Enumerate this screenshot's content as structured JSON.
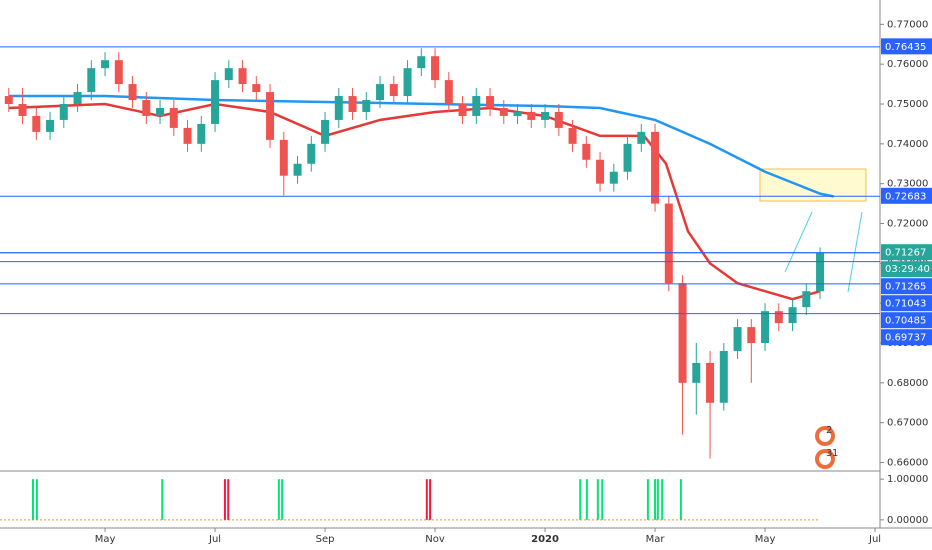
{
  "chart_data": [
    {
      "type": "candlestick",
      "x": [
        2.25,
        2.5,
        2.75,
        3,
        3.25,
        3.5,
        3.75,
        4,
        4.25,
        4.5,
        4.75,
        5,
        5.25,
        5.5,
        5.75,
        6,
        6.25,
        6.5,
        6.75,
        7,
        7.25,
        7.5,
        7.75,
        8,
        8.25,
        8.5,
        8.75,
        9,
        9.25,
        9.5,
        9.75,
        10,
        10.25,
        10.5,
        10.75,
        11,
        11.25,
        11.5,
        11.75,
        12,
        12.25,
        12.5,
        12.75,
        13,
        13.25,
        13.5,
        13.75,
        14,
        14.25,
        14.5,
        14.75,
        15,
        15.25,
        15.5,
        15.75,
        16,
        16.25,
        16.5,
        16.75,
        17
      ],
      "open": [
        0.752,
        0.75,
        0.747,
        0.743,
        0.746,
        0.75,
        0.753,
        0.759,
        0.761,
        0.755,
        0.751,
        0.747,
        0.749,
        0.744,
        0.74,
        0.745,
        0.756,
        0.759,
        0.755,
        0.753,
        0.741,
        0.732,
        0.735,
        0.74,
        0.746,
        0.752,
        0.748,
        0.751,
        0.755,
        0.752,
        0.759,
        0.762,
        0.756,
        0.75,
        0.747,
        0.752,
        0.749,
        0.747,
        0.748,
        0.746,
        0.748,
        0.744,
        0.74,
        0.736,
        0.73,
        0.733,
        0.74,
        0.743,
        0.725,
        0.705,
        0.68,
        0.685,
        0.675,
        0.688,
        0.694,
        0.69,
        0.698,
        0.695,
        0.699,
        0.703
      ],
      "high": [
        0.754,
        0.754,
        0.749,
        0.748,
        0.752,
        0.755,
        0.761,
        0.763,
        0.763,
        0.757,
        0.753,
        0.751,
        0.751,
        0.746,
        0.747,
        0.758,
        0.761,
        0.761,
        0.757,
        0.755,
        0.743,
        0.737,
        0.742,
        0.748,
        0.754,
        0.754,
        0.753,
        0.757,
        0.757,
        0.761,
        0.764,
        0.764,
        0.758,
        0.752,
        0.754,
        0.754,
        0.751,
        0.75,
        0.75,
        0.75,
        0.75,
        0.746,
        0.742,
        0.738,
        0.735,
        0.742,
        0.745,
        0.745,
        0.727,
        0.707,
        0.69,
        0.688,
        0.69,
        0.696,
        0.696,
        0.7,
        0.7,
        0.701,
        0.705,
        0.714
      ],
      "low": [
        0.748,
        0.745,
        0.741,
        0.741,
        0.744,
        0.748,
        0.751,
        0.757,
        0.753,
        0.749,
        0.745,
        0.745,
        0.742,
        0.738,
        0.738,
        0.743,
        0.754,
        0.753,
        0.751,
        0.739,
        0.727,
        0.73,
        0.733,
        0.738,
        0.744,
        0.746,
        0.746,
        0.749,
        0.75,
        0.75,
        0.757,
        0.754,
        0.748,
        0.745,
        0.745,
        0.747,
        0.745,
        0.745,
        0.744,
        0.744,
        0.742,
        0.738,
        0.734,
        0.728,
        0.728,
        0.731,
        0.738,
        0.723,
        0.703,
        0.667,
        0.672,
        0.661,
        0.673,
        0.686,
        0.68,
        0.688,
        0.693,
        0.693,
        0.697,
        0.701
      ],
      "close": [
        0.75,
        0.747,
        0.743,
        0.746,
        0.75,
        0.753,
        0.759,
        0.761,
        0.755,
        0.751,
        0.747,
        0.749,
        0.744,
        0.74,
        0.745,
        0.756,
        0.759,
        0.755,
        0.753,
        0.741,
        0.732,
        0.735,
        0.74,
        0.746,
        0.752,
        0.748,
        0.751,
        0.755,
        0.752,
        0.759,
        0.762,
        0.756,
        0.75,
        0.747,
        0.752,
        0.749,
        0.747,
        0.748,
        0.746,
        0.748,
        0.744,
        0.74,
        0.736,
        0.73,
        0.733,
        0.74,
        0.743,
        0.725,
        0.705,
        0.68,
        0.685,
        0.675,
        0.688,
        0.694,
        0.69,
        0.698,
        0.695,
        0.699,
        0.703,
        0.7127
      ],
      "up_color": "#26a69a",
      "down_color": "#ef5350",
      "lines": [
        {
          "color": "#2196f3",
          "x": [
            2.25,
            4,
            6,
            8,
            10,
            12,
            13,
            14,
            15,
            16,
            17,
            17.25
          ],
          "values": [
            0.752,
            0.752,
            0.751,
            0.7505,
            0.75,
            0.7495,
            0.749,
            0.746,
            0.74,
            0.733,
            0.7275,
            0.7268
          ]
        },
        {
          "color": "#e53935",
          "x": [
            2.25,
            4,
            5,
            6,
            7,
            8,
            9,
            10,
            11,
            12,
            13,
            13.8,
            14.2,
            14.6,
            15,
            15.5,
            16,
            16.5,
            17
          ],
          "values": [
            0.749,
            0.75,
            0.747,
            0.75,
            0.748,
            0.742,
            0.746,
            0.748,
            0.749,
            0.747,
            0.742,
            0.742,
            0.735,
            0.718,
            0.71,
            0.705,
            0.703,
            0.701,
            0.703
          ]
        }
      ],
      "xlim": [
        2.09,
        18.09
      ],
      "xticks": [
        {
          "value": 4,
          "label": "May"
        },
        {
          "value": 6,
          "label": "Jul"
        },
        {
          "value": 8,
          "label": "Sep"
        },
        {
          "value": 10,
          "label": "Nov"
        },
        {
          "value": 12,
          "label": "2020"
        },
        {
          "value": 14,
          "label": "Mar"
        },
        {
          "value": 16,
          "label": "May"
        },
        {
          "value": 18,
          "label": "Jul"
        }
      ],
      "ylim": [
        0.65812,
        0.77611
      ],
      "yticks": [
        {
          "value": 0.77,
          "label": "0.77000"
        },
        {
          "value": 0.76,
          "label": "0.76000"
        },
        {
          "value": 0.75,
          "label": "0.75000"
        },
        {
          "value": 0.74,
          "label": "0.74000"
        },
        {
          "value": 0.73,
          "label": "0.73000"
        },
        {
          "value": 0.72,
          "label": "0.72000"
        },
        {
          "value": 0.71,
          "label": "0.71000"
        },
        {
          "value": 0.7,
          "label": "0.70000"
        },
        {
          "value": 0.69,
          "label": "0.69000"
        },
        {
          "value": 0.68,
          "label": "0.68000"
        },
        {
          "value": 0.67,
          "label": "0.67000"
        },
        {
          "value": 0.66,
          "label": "0.66000"
        }
      ],
      "levels": [
        0.76435,
        0.72683,
        0.71265,
        0.71043,
        0.70485,
        0.69737
      ],
      "level_color": "#2962ff",
      "current_price": 0.71267,
      "current_color": "#26a69a",
      "countdown": "03:29:40",
      "markers": [
        "2",
        "3",
        "1"
      ]
    },
    {
      "type": "bar",
      "series": [
        {
          "color": "#00e676",
          "x": [
            2.69,
            2.76,
            5.04,
            7.16,
            7.22,
            12.64,
            12.76,
            12.96,
            13.04,
            13.87,
            14.0,
            14.05,
            14.13,
            14.47
          ],
          "values": [
            1,
            1,
            1,
            1,
            1,
            1,
            1,
            1,
            1,
            1,
            1,
            1,
            1,
            1
          ]
        },
        {
          "color": "#ff1744",
          "x": [
            6.18,
            6.24,
            9.85,
            9.91
          ],
          "values": [
            1,
            1,
            1,
            1
          ]
        }
      ],
      "xlim": [
        2.09,
        18.09
      ],
      "ylim": [
        -0.2,
        1.2
      ],
      "yticks": [
        {
          "value": 1,
          "label": "1.00000"
        },
        {
          "value": 0,
          "label": "0.00000"
        }
      ],
      "baseline_color": "#ff9800"
    }
  ]
}
